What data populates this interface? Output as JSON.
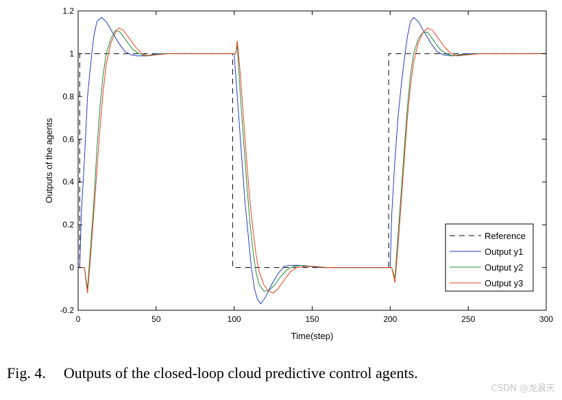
{
  "caption": {
    "fig_label": "Fig. 4.",
    "text": "Outputs of the closed-loop cloud predictive control agents."
  },
  "watermark": "CSDN @龙晨天",
  "chart_data": {
    "type": "line",
    "title": "",
    "xlabel": "Time(step)",
    "ylabel": "Outputs of the agents",
    "xlim": [
      0,
      300
    ],
    "ylim": [
      -0.2,
      1.2
    ],
    "xticks": [
      0,
      50,
      100,
      150,
      200,
      250,
      300
    ],
    "yticks": [
      -0.2,
      0,
      0.2,
      0.4,
      0.6,
      0.8,
      1,
      1.2
    ],
    "ytick_labels": [
      "-0.2",
      "0",
      "0.2",
      "0.4",
      "0.6",
      "0.8",
      "1",
      "1.2"
    ],
    "grid": false,
    "legend_position": "bottom-right",
    "series": [
      {
        "name": "Reference",
        "color": "#000000",
        "dash": true,
        "points": [
          [
            0,
            0
          ],
          [
            1,
            0
          ],
          [
            1,
            1
          ],
          [
            99,
            1
          ],
          [
            99,
            0
          ],
          [
            199,
            0
          ],
          [
            199,
            1
          ],
          [
            300,
            1
          ]
        ]
      },
      {
        "name": "Output y1",
        "color": "#1f3fbf",
        "points": [
          [
            0,
            0
          ],
          [
            1,
            0
          ],
          [
            2,
            0.25
          ],
          [
            4,
            0.5
          ],
          [
            6,
            0.8
          ],
          [
            8,
            0.95
          ],
          [
            10,
            1.08
          ],
          [
            12,
            1.15
          ],
          [
            15,
            1.17
          ],
          [
            18,
            1.15
          ],
          [
            22,
            1.1
          ],
          [
            26,
            1.05
          ],
          [
            30,
            1.01
          ],
          [
            34,
            0.995
          ],
          [
            38,
            0.99
          ],
          [
            44,
            0.99
          ],
          [
            50,
            1
          ],
          [
            99,
            1
          ],
          [
            100,
            1
          ],
          [
            101,
            0.9
          ],
          [
            103,
            0.7
          ],
          [
            105,
            0.5
          ],
          [
            107,
            0.3
          ],
          [
            109,
            0.15
          ],
          [
            111,
            0
          ],
          [
            113,
            -0.1
          ],
          [
            115,
            -0.15
          ],
          [
            117,
            -0.17
          ],
          [
            120,
            -0.14
          ],
          [
            124,
            -0.08
          ],
          [
            128,
            -0.03
          ],
          [
            132,
            0.005
          ],
          [
            136,
            0.01
          ],
          [
            142,
            0.01
          ],
          [
            148,
            0.005
          ],
          [
            155,
            0
          ],
          [
            199,
            0
          ],
          [
            200,
            0
          ],
          [
            201,
            0.25
          ],
          [
            203,
            0.5
          ],
          [
            205,
            0.7
          ],
          [
            207,
            0.85
          ],
          [
            209,
            0.97
          ],
          [
            211,
            1.08
          ],
          [
            213,
            1.15
          ],
          [
            215,
            1.17
          ],
          [
            218,
            1.15
          ],
          [
            222,
            1.1
          ],
          [
            226,
            1.05
          ],
          [
            230,
            1.01
          ],
          [
            234,
            0.995
          ],
          [
            240,
            0.99
          ],
          [
            248,
            1
          ],
          [
            300,
            1
          ]
        ]
      },
      {
        "name": "Output y2",
        "color": "#1f8a3a",
        "points": [
          [
            0,
            0
          ],
          [
            4,
            0
          ],
          [
            6,
            -0.1
          ],
          [
            8,
            0.1
          ],
          [
            10,
            0.3
          ],
          [
            12,
            0.55
          ],
          [
            14,
            0.75
          ],
          [
            16,
            0.9
          ],
          [
            18,
            1.0
          ],
          [
            21,
            1.07
          ],
          [
            24,
            1.11
          ],
          [
            27,
            1.1
          ],
          [
            31,
            1.06
          ],
          [
            35,
            1.02
          ],
          [
            39,
            1.0
          ],
          [
            43,
            0.99
          ],
          [
            48,
            0.995
          ],
          [
            55,
            1
          ],
          [
            99,
            1
          ],
          [
            101,
            1
          ],
          [
            102,
            1.04
          ],
          [
            104,
            0.8
          ],
          [
            106,
            0.6
          ],
          [
            108,
            0.4
          ],
          [
            110,
            0.22
          ],
          [
            112,
            0.08
          ],
          [
            114,
            -0.02
          ],
          [
            116,
            -0.08
          ],
          [
            119,
            -0.11
          ],
          [
            122,
            -0.11
          ],
          [
            126,
            -0.08
          ],
          [
            130,
            -0.04
          ],
          [
            134,
            -0.01
          ],
          [
            138,
            0.005
          ],
          [
            144,
            0.01
          ],
          [
            150,
            0.005
          ],
          [
            158,
            0
          ],
          [
            199,
            0
          ],
          [
            201,
            0
          ],
          [
            203,
            -0.05
          ],
          [
            205,
            0.15
          ],
          [
            207,
            0.35
          ],
          [
            209,
            0.55
          ],
          [
            211,
            0.75
          ],
          [
            213,
            0.9
          ],
          [
            215,
            1.0
          ],
          [
            218,
            1.07
          ],
          [
            221,
            1.1
          ],
          [
            224,
            1.1
          ],
          [
            228,
            1.06
          ],
          [
            232,
            1.02
          ],
          [
            236,
            1.0
          ],
          [
            240,
            0.99
          ],
          [
            246,
            0.995
          ],
          [
            255,
            1
          ],
          [
            300,
            1
          ]
        ]
      },
      {
        "name": "Output y3",
        "color": "#e8401c",
        "points": [
          [
            0,
            0
          ],
          [
            4,
            0
          ],
          [
            6,
            -0.12
          ],
          [
            8,
            0.05
          ],
          [
            10,
            0.25
          ],
          [
            12,
            0.45
          ],
          [
            14,
            0.65
          ],
          [
            16,
            0.82
          ],
          [
            18,
            0.95
          ],
          [
            21,
            1.05
          ],
          [
            24,
            1.1
          ],
          [
            26,
            1.12
          ],
          [
            29,
            1.11
          ],
          [
            33,
            1.07
          ],
          [
            37,
            1.03
          ],
          [
            41,
            1.0
          ],
          [
            45,
            0.99
          ],
          [
            50,
            0.995
          ],
          [
            58,
            1
          ],
          [
            99,
            1
          ],
          [
            101,
            1
          ],
          [
            102,
            1.06
          ],
          [
            104,
            0.9
          ],
          [
            106,
            0.7
          ],
          [
            108,
            0.5
          ],
          [
            110,
            0.32
          ],
          [
            112,
            0.18
          ],
          [
            114,
            0.06
          ],
          [
            116,
            -0.02
          ],
          [
            119,
            -0.08
          ],
          [
            122,
            -0.11
          ],
          [
            125,
            -0.12
          ],
          [
            128,
            -0.1
          ],
          [
            132,
            -0.06
          ],
          [
            136,
            -0.02
          ],
          [
            140,
            0
          ],
          [
            146,
            0.005
          ],
          [
            152,
            0.005
          ],
          [
            160,
            0
          ],
          [
            199,
            0
          ],
          [
            201,
            0
          ],
          [
            203,
            -0.07
          ],
          [
            205,
            0.1
          ],
          [
            207,
            0.3
          ],
          [
            209,
            0.5
          ],
          [
            211,
            0.7
          ],
          [
            213,
            0.85
          ],
          [
            215,
            0.96
          ],
          [
            218,
            1.05
          ],
          [
            221,
            1.1
          ],
          [
            224,
            1.12
          ],
          [
            227,
            1.11
          ],
          [
            231,
            1.07
          ],
          [
            235,
            1.03
          ],
          [
            239,
            1.0
          ],
          [
            243,
            0.99
          ],
          [
            250,
            0.995
          ],
          [
            258,
            1
          ],
          [
            300,
            1
          ]
        ]
      }
    ]
  }
}
